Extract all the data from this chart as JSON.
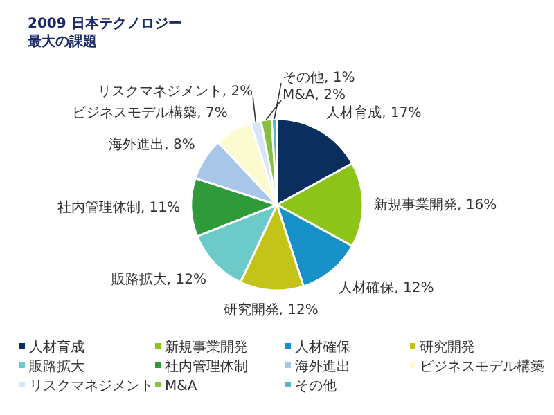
{
  "chart_data": {
    "type": "pie",
    "title": "2009 日本テクノロジー",
    "subtitle": "最大の課題",
    "categories": [
      "人材育成",
      "新規事業開発",
      "人材確保",
      "研究開発",
      "販路拡大",
      "社内管理体制",
      "海外進出",
      "ビジネスモデル構築",
      "リスクマネジメント",
      "M&A",
      "その他"
    ],
    "values": [
      17,
      16,
      12,
      12,
      12,
      11,
      8,
      7,
      2,
      2,
      1
    ],
    "value_labels": [
      "人材育成, 17%",
      "新規事業開発, 16%",
      "人材確保, 12%",
      "研究開発, 12%",
      "販路拡大, 12%",
      "社内管理体制, 11%",
      "海外進出, 8%",
      "ビジネスモデル構築, 7%",
      "リスクマネジメント, 2%",
      "M&A, 2%",
      "その他, 1%"
    ],
    "colors": [
      "#0a2f5e",
      "#8cc41a",
      "#1890c8",
      "#c4c418",
      "#6ccbc8",
      "#2e9a3a",
      "#a8c6e8",
      "#fbfbcf",
      "#d2e9f5",
      "#86c040",
      "#58b6c6"
    ],
    "legend": "bottom"
  }
}
